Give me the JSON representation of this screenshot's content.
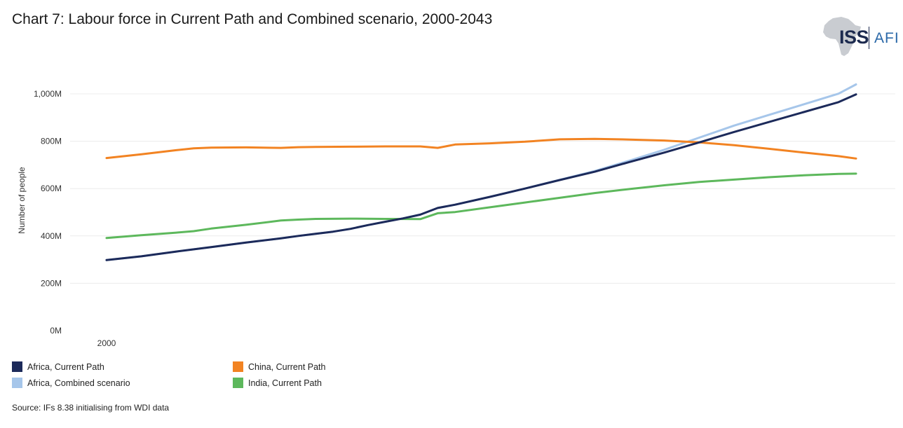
{
  "title": "Chart 7: Labour force in Current Path and Combined scenario, 2000-2043",
  "logo": {
    "text": "ISS",
    "suffix": "AFI"
  },
  "source": "Source: IFs 8.38 initialising from WDI data",
  "chart_data": {
    "type": "line",
    "title": "Chart 7: Labour force in Current Path and Combined scenario, 2000-2043",
    "xlabel": "",
    "ylabel": "Number of people",
    "xlim": [
      2000,
      2043
    ],
    "ylim": [
      0,
      1000
    ],
    "y_unit": "M",
    "x_ticks": [
      2000
    ],
    "y_ticks": [
      {
        "value": 0,
        "label": "0M"
      },
      {
        "value": 200,
        "label": "200M"
      },
      {
        "value": 400,
        "label": "400M"
      },
      {
        "value": 600,
        "label": "600M"
      },
      {
        "value": 800,
        "label": "800M"
      },
      {
        "value": 1000,
        "label": "1,000M"
      }
    ],
    "grid": true,
    "legend_position": "bottom-left",
    "series": [
      {
        "name": "Africa, Current Path",
        "color": "#1c2a5a",
        "x": [
          2000,
          2002,
          2004,
          2006,
          2008,
          2010,
          2011,
          2012,
          2013,
          2014,
          2015,
          2016,
          2017,
          2018,
          2019,
          2020,
          2022,
          2024,
          2026,
          2028,
          2030,
          2032,
          2034,
          2036,
          2038,
          2040,
          2042,
          2043
        ],
        "values": [
          298,
          314,
          334,
          353,
          372,
          390,
          400,
          409,
          418,
          430,
          446,
          460,
          474,
          490,
          518,
          532,
          565,
          600,
          636,
          671,
          712,
          752,
          795,
          839,
          881,
          923,
          965,
          998
        ]
      },
      {
        "name": "Africa, Combined scenario",
        "color": "#a6c6ea",
        "x": [
          2000,
          2002,
          2004,
          2006,
          2008,
          2010,
          2011,
          2012,
          2013,
          2014,
          2015,
          2016,
          2017,
          2018,
          2019,
          2020,
          2022,
          2024,
          2026,
          2028,
          2030,
          2032,
          2034,
          2036,
          2038,
          2040,
          2042,
          2043
        ],
        "values": [
          298,
          314,
          334,
          353,
          372,
          390,
          400,
          409,
          418,
          430,
          446,
          460,
          474,
          490,
          518,
          532,
          565,
          600,
          637,
          674,
          718,
          764,
          815,
          866,
          911,
          956,
          1001,
          1040
        ]
      },
      {
        "name": "China, Current Path",
        "color": "#f28322",
        "x": [
          2000,
          2002,
          2004,
          2005,
          2006,
          2008,
          2010,
          2011,
          2012,
          2014,
          2016,
          2018,
          2019,
          2020,
          2022,
          2024,
          2026,
          2028,
          2030,
          2032,
          2034,
          2036,
          2038,
          2040,
          2042,
          2043
        ],
        "values": [
          729,
          745,
          762,
          770,
          773,
          774,
          772,
          775,
          776,
          777,
          778,
          778,
          772,
          786,
          791,
          798,
          808,
          810,
          807,
          803,
          795,
          783,
          768,
          752,
          737,
          727
        ]
      },
      {
        "name": "India, Current Path",
        "color": "#5db85c",
        "x": [
          2000,
          2002,
          2004,
          2005,
          2006,
          2008,
          2010,
          2011,
          2012,
          2014,
          2016,
          2018,
          2019,
          2020,
          2022,
          2024,
          2026,
          2028,
          2030,
          2032,
          2034,
          2036,
          2038,
          2040,
          2042,
          2043
        ],
        "values": [
          391,
          403,
          414,
          420,
          431,
          447,
          465,
          469,
          472,
          473,
          472,
          471,
          496,
          501,
          521,
          541,
          561,
          581,
          598,
          614,
          628,
          638,
          648,
          656,
          662,
          663
        ]
      }
    ]
  },
  "legend": [
    {
      "label": "Africa, Current Path",
      "color": "#1c2a5a"
    },
    {
      "label": "Africa, Combined scenario",
      "color": "#a6c6ea"
    },
    {
      "label": "China, Current Path",
      "color": "#f28322"
    },
    {
      "label": "India, Current Path",
      "color": "#5db85c"
    }
  ]
}
